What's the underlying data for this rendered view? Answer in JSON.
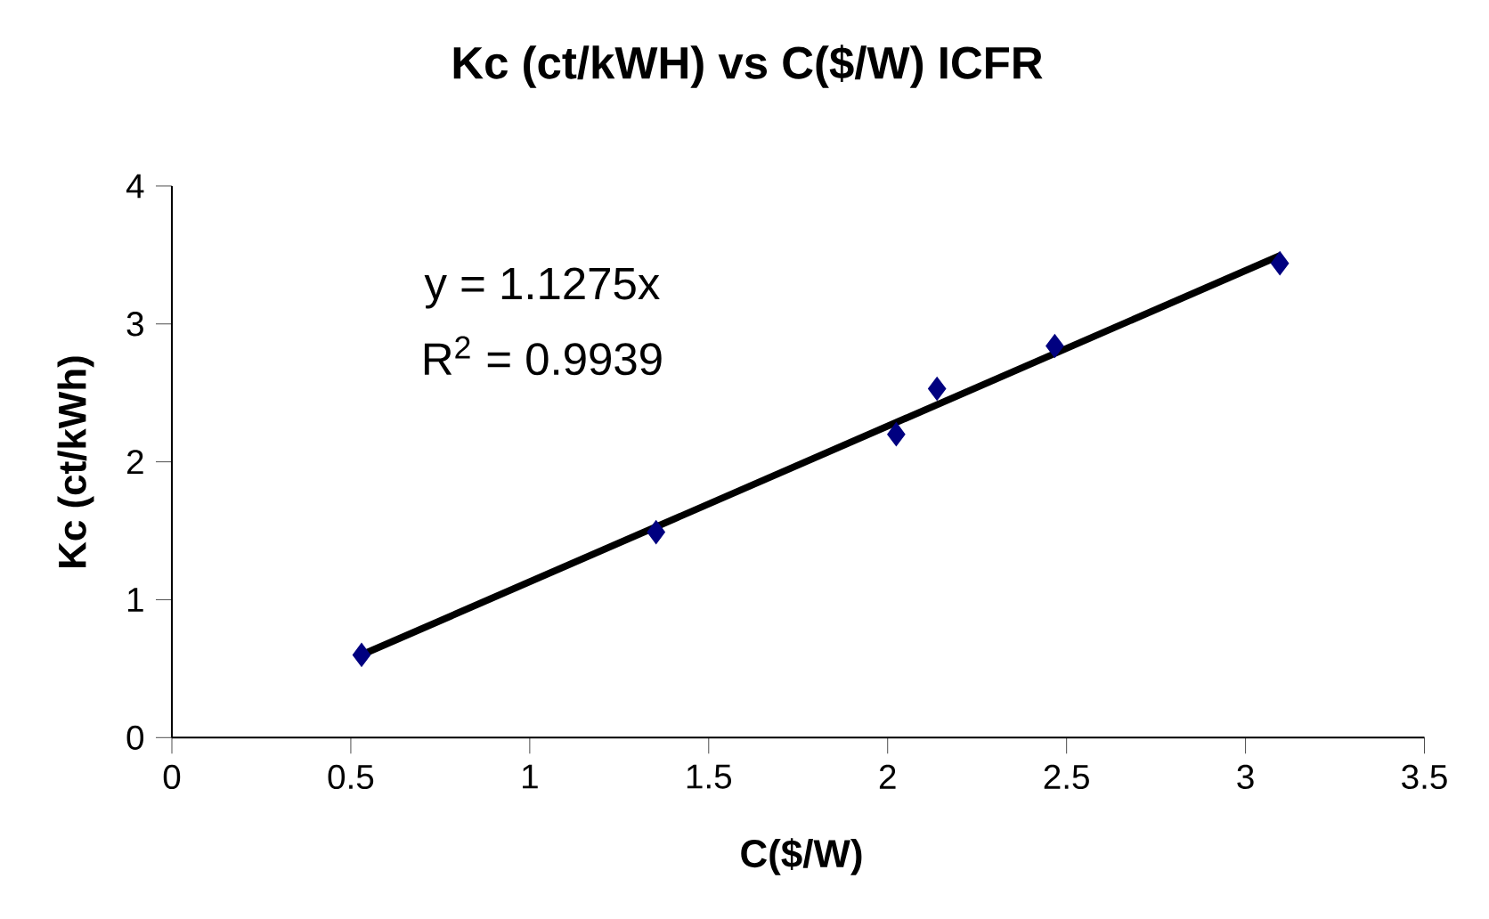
{
  "chart_data": {
    "type": "scatter",
    "title": "Kc (ct/kWH) vs C($/W) ICFR",
    "xlabel": "C($/W)",
    "ylabel": "Kc (ct/kWh)",
    "series": [
      {
        "color": "#000080",
        "marker": "diamond",
        "x": [
          0.53,
          1.353,
          2.024,
          2.138,
          2.467,
          3.096
        ],
        "values": [
          0.6,
          1.49,
          2.2,
          2.53,
          2.84,
          3.44
        ]
      },
      {
        "type": "line",
        "color": "#000000",
        "marker": "none",
        "line_style": "solid",
        "x": [
          0.53,
          3.1
        ],
        "values": [
          0.6,
          3.5
        ]
      }
    ],
    "xlim": [
      0,
      3.5
    ],
    "xticks": [
      0,
      0.5,
      1,
      1.5,
      2,
      2.5,
      3,
      3.5
    ],
    "ylim": [
      0,
      4
    ],
    "yticks": [
      0,
      1,
      2,
      3,
      4
    ],
    "grid": false,
    "annotations": [
      "y = 1.1275x",
      "R$^{2}$ = 0.9939"
    ]
  }
}
